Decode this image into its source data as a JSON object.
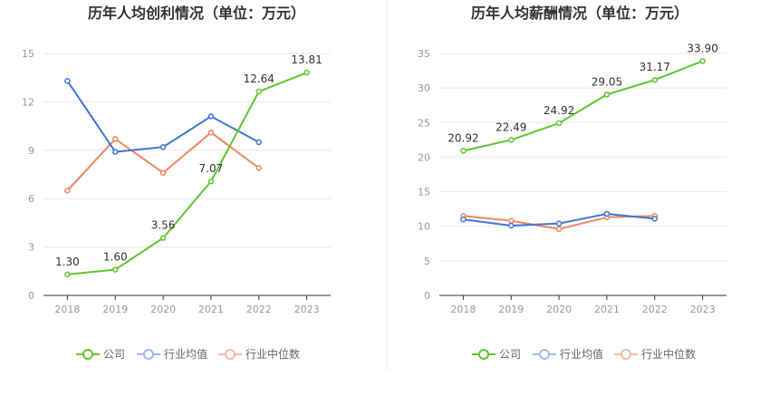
{
  "colors": {
    "company": "#5ec62f",
    "industry_avg": "#3d77d6",
    "industry_median": "#f0855f",
    "grid": "#e4e7ef",
    "axis": "#333333",
    "divider": "#eeeeee"
  },
  "legend": {
    "company": "公司",
    "industry_avg": "行业均值",
    "industry_median": "行业中位数"
  },
  "chart_data": [
    {
      "type": "line",
      "title": "历年人均创利情况（单位：万元）",
      "categories": [
        "2018",
        "2019",
        "2020",
        "2021",
        "2022",
        "2023"
      ],
      "ylim": [
        0,
        15
      ],
      "yticks": [
        0,
        3,
        6,
        9,
        12,
        15
      ],
      "grid": true,
      "legend_position": "bottom",
      "series": [
        {
          "name": "公司",
          "key": "company",
          "values": [
            1.3,
            1.6,
            3.56,
            7.07,
            12.64,
            13.81
          ],
          "labels": [
            "1.30",
            "1.60",
            "3.56",
            "7.07",
            "12.64",
            "13.81"
          ]
        },
        {
          "name": "行业均值",
          "key": "industry_avg",
          "values": [
            13.3,
            8.9,
            9.2,
            11.1,
            9.5,
            null
          ]
        },
        {
          "name": "行业中位数",
          "key": "industry_median",
          "values": [
            6.5,
            9.7,
            7.6,
            10.1,
            7.9,
            null
          ]
        }
      ]
    },
    {
      "type": "line",
      "title": "历年人均薪酬情况（单位：万元）",
      "categories": [
        "2018",
        "2019",
        "2020",
        "2021",
        "2022",
        "2023"
      ],
      "ylim": [
        0,
        35
      ],
      "yticks": [
        0,
        5,
        10,
        15,
        20,
        25,
        30,
        35
      ],
      "grid": true,
      "legend_position": "bottom",
      "series": [
        {
          "name": "公司",
          "key": "company",
          "values": [
            20.92,
            22.49,
            24.92,
            29.05,
            31.17,
            33.9
          ],
          "labels": [
            "20.92",
            "22.49",
            "24.92",
            "29.05",
            "31.17",
            "33.90"
          ]
        },
        {
          "name": "行业均值",
          "key": "industry_avg",
          "values": [
            11.0,
            10.1,
            10.4,
            11.8,
            11.1,
            null
          ]
        },
        {
          "name": "行业中位数",
          "key": "industry_median",
          "values": [
            11.5,
            10.8,
            9.6,
            11.3,
            11.5,
            null
          ]
        }
      ]
    }
  ]
}
